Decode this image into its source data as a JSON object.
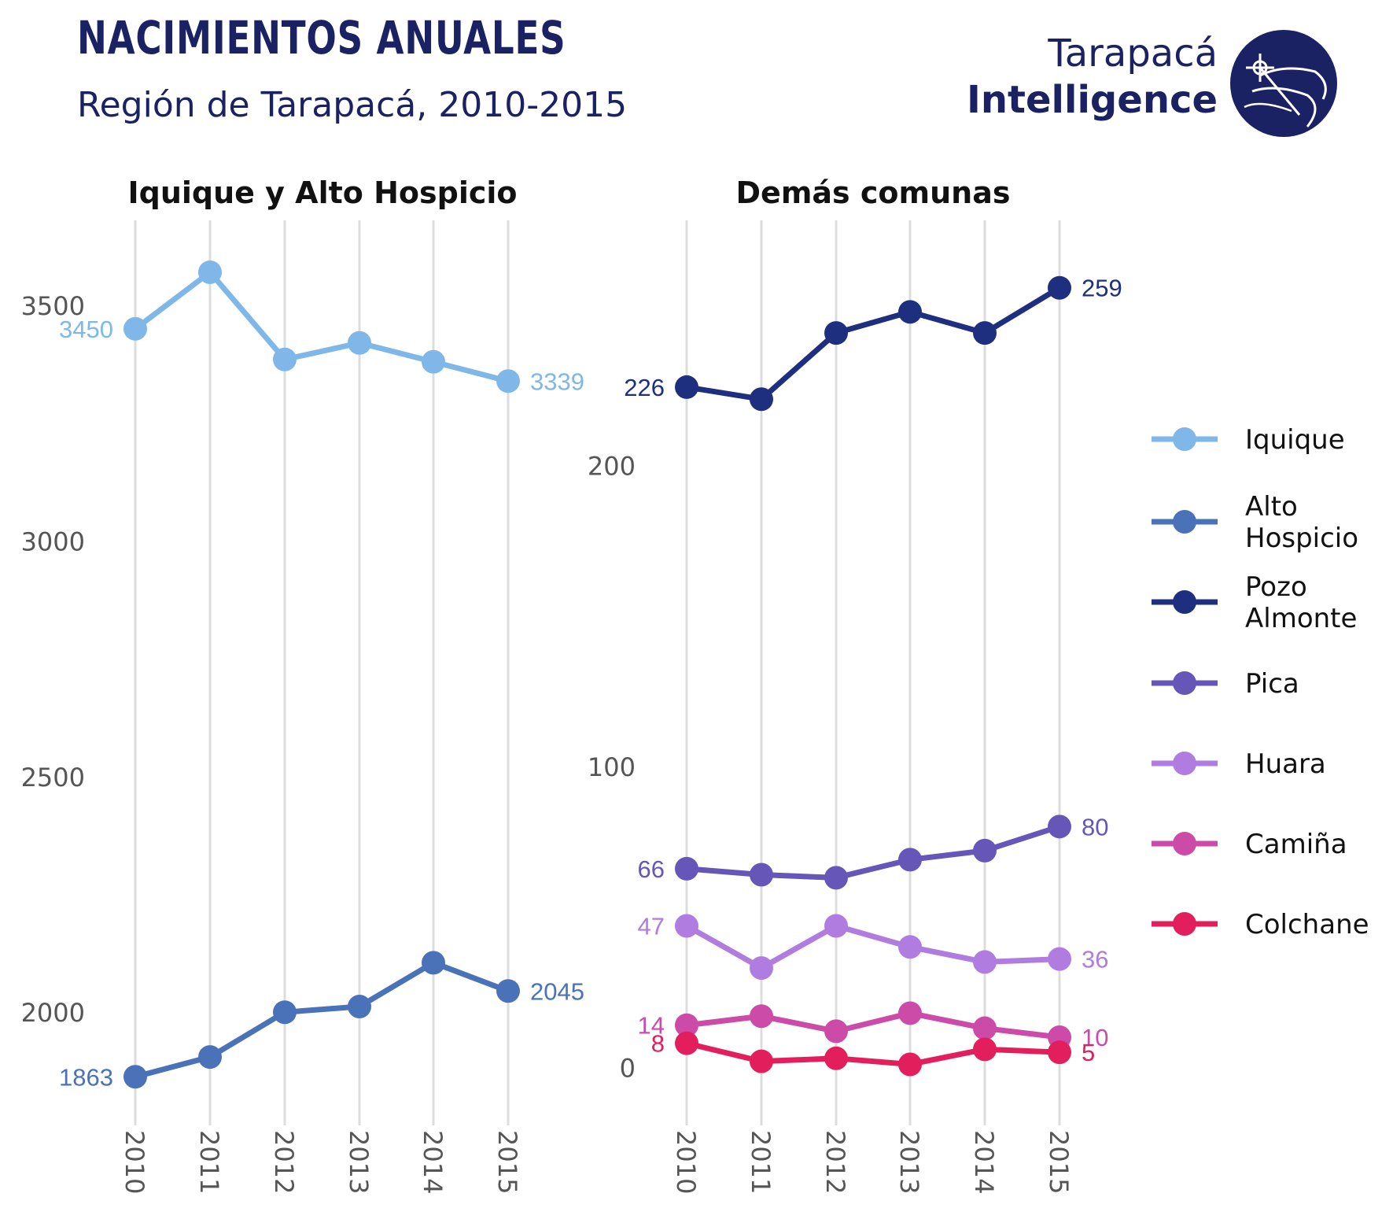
{
  "header": {
    "title": "NACIMIENTOS ANUALES",
    "subtitle": "Región de Tarapacá, 2010-2015"
  },
  "brand": {
    "top": "Tarapacá",
    "bottom": "Intelligence",
    "color": "#1a2263",
    "logo_icon": "globe-compass-icon"
  },
  "chart_data": [
    {
      "type": "line",
      "title": "Iquique y Alto Hospicio",
      "x": [
        "2010",
        "2011",
        "2012",
        "2013",
        "2014",
        "2015"
      ],
      "yticks": [
        2000,
        2500,
        3000,
        3500
      ],
      "ylim": [
        1800,
        3620
      ],
      "grid": "vertical",
      "series": [
        {
          "name": "Iquique",
          "color": "#7fb8e8",
          "values": [
            3450,
            3570,
            3385,
            3420,
            3380,
            3339
          ],
          "first_label": "3450",
          "last_label": "3339"
        },
        {
          "name": "Alto Hospicio",
          "color": "#4a72b8",
          "values": [
            1863,
            1905,
            2000,
            2012,
            2105,
            2045
          ],
          "first_label": "1863",
          "last_label": "2045"
        }
      ]
    },
    {
      "type": "line",
      "title": "Demás comunas",
      "x": [
        "2010",
        "2011",
        "2012",
        "2013",
        "2014",
        "2015"
      ],
      "yticks": [
        0,
        100,
        200
      ],
      "ylim": [
        -13,
        272
      ],
      "grid": "vertical",
      "series": [
        {
          "name": "Pozo Almonte",
          "color": "#1f2f80",
          "values": [
            226,
            222,
            244,
            251,
            244,
            259
          ],
          "first_label": "226",
          "last_label": "259"
        },
        {
          "name": "Pica",
          "color": "#6656b8",
          "values": [
            66,
            64,
            63,
            69,
            72,
            80
          ],
          "first_label": "66",
          "last_label": "80"
        },
        {
          "name": "Huara",
          "color": "#b07ce0",
          "values": [
            47,
            33,
            47,
            40,
            35,
            36
          ],
          "first_label": "47",
          "last_label": "36"
        },
        {
          "name": "Camiña",
          "color": "#cc4aa8",
          "values": [
            14,
            17,
            12,
            18,
            13,
            10
          ],
          "first_label": "14",
          "last_label": "10"
        },
        {
          "name": "Colchane",
          "color": "#e21f5c",
          "values": [
            8,
            2,
            3,
            1,
            6,
            5
          ],
          "first_label": "8",
          "last_label": "5"
        }
      ]
    }
  ],
  "legend": {
    "position": "right",
    "items": [
      {
        "lines": [
          "Iquique"
        ],
        "color": "#7fb8e8"
      },
      {
        "lines": [
          "Alto",
          "Hospicio"
        ],
        "color": "#4a72b8"
      },
      {
        "lines": [
          "Pozo",
          "Almonte"
        ],
        "color": "#1f2f80"
      },
      {
        "lines": [
          "Pica"
        ],
        "color": "#6656b8"
      },
      {
        "lines": [
          "Huara"
        ],
        "color": "#b07ce0"
      },
      {
        "lines": [
          "Camiña"
        ],
        "color": "#cc4aa8"
      },
      {
        "lines": [
          "Colchane"
        ],
        "color": "#e21f5c"
      }
    ]
  }
}
